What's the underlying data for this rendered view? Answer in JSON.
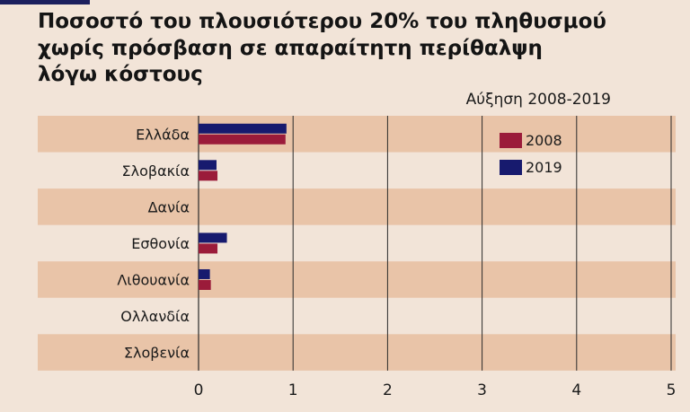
{
  "title_lines": [
    "Ποσοστό του πλουσιότερου 20% του πληθυσμού",
    "χωρίς πρόσβαση σε απαραίτητη περίθαλψη",
    "λόγω κόστους"
  ],
  "subtitle": "Αύξηση 2008-2019",
  "colors": {
    "series_2008": "#9b1b3a",
    "series_2019": "#171a6e",
    "band": "#e9c4a8",
    "background": "#f2e4d8"
  },
  "chart_data": {
    "type": "bar",
    "orientation": "horizontal",
    "categories": [
      "Ελλάδα",
      "Σλοβακία",
      "Δανία",
      "Εσθονία",
      "Λιθουανία",
      "Ολλανδία",
      "Σλοβενία"
    ],
    "series": [
      {
        "name": "2008",
        "values": [
          0.92,
          0.2,
          0,
          0.2,
          0.13,
          0,
          0
        ]
      },
      {
        "name": "2019",
        "values": [
          0.93,
          0.19,
          0,
          0.3,
          0.12,
          0,
          0
        ]
      }
    ],
    "xlim": [
      0,
      5
    ],
    "xticks": [
      "0",
      "1",
      "2",
      "3",
      "4",
      "5"
    ],
    "legend": [
      "2008",
      "2019"
    ],
    "legend_position": "top-right",
    "grid": true
  }
}
